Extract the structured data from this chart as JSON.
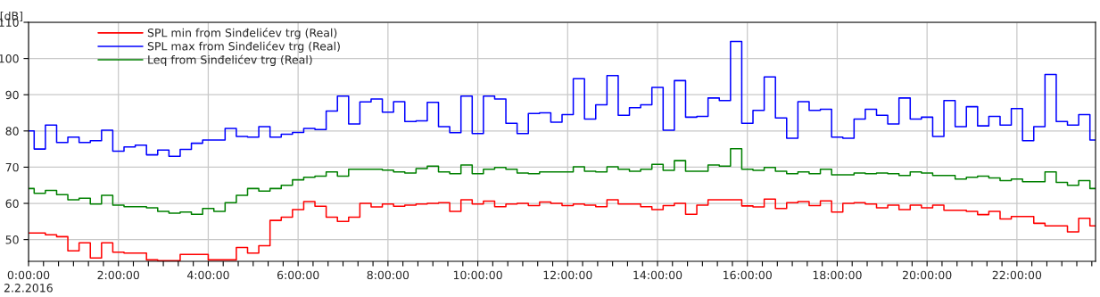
{
  "chart_data": {
    "type": "step",
    "ylabel": "[dB]",
    "annotations": [
      "2.2.2016"
    ],
    "x": [
      0,
      0.25,
      0.5,
      0.75,
      1,
      1.25,
      1.5,
      1.75,
      2,
      2.25,
      2.5,
      2.75,
      3,
      3.25,
      3.5,
      3.75,
      4,
      4.25,
      4.5,
      4.75,
      5,
      5.25,
      5.5,
      5.75,
      6,
      6.25,
      6.5,
      6.75,
      7,
      7.25,
      7.5,
      7.75,
      8,
      8.25,
      8.5,
      8.75,
      9,
      9.25,
      9.5,
      9.75,
      10,
      10.25,
      10.5,
      10.75,
      11,
      11.25,
      11.5,
      11.75,
      12,
      12.25,
      12.5,
      12.75,
      13,
      13.25,
      13.5,
      13.75,
      14,
      14.25,
      14.5,
      14.75,
      15,
      15.25,
      15.5,
      15.75,
      16,
      16.25,
      16.5,
      16.75,
      17,
      17.25,
      17.5,
      17.75,
      18,
      18.25,
      18.5,
      18.75,
      19,
      19.25,
      19.5,
      19.75,
      20,
      20.25,
      20.5,
      20.75,
      21,
      21.25,
      21.5,
      21.75,
      22,
      22.25,
      22.5,
      22.75,
      23,
      23.25,
      23.5,
      23.75
    ],
    "series": [
      {
        "name": "SPL min from Sinđelićev trg (Real)",
        "color": "#ff0000",
        "values": [
          51.8,
          51.8,
          51.3,
          50.8,
          46.9,
          49.1,
          44.9,
          49.1,
          46.5,
          46.3,
          46.3,
          44.4,
          44.2,
          44.2,
          45.9,
          null,
          null,
          null,
          44.4,
          47.8,
          46.3,
          48.3,
          55.3,
          56.2,
          58.3,
          60.5,
          59.2,
          56.2,
          55.0,
          56.2,
          60.0,
          59.0,
          59.8,
          59.2,
          59.5,
          59.8,
          60.0,
          60.2,
          57.8,
          61.0,
          59.8,
          60.6,
          59.1,
          59.8,
          60.0,
          59.4,
          60.4,
          60.0,
          59.4,
          59.8,
          59.5,
          59.1,
          61.0,
          59.8,
          59.8,
          59.1,
          58.3,
          59.4,
          60.0,
          57.0,
          59.5,
          61.0,
          61.0,
          61.0,
          59.3,
          59.0,
          61.2,
          58.6,
          60.2,
          60.5,
          59.4,
          60.7,
          57.6,
          60.0,
          60.2,
          59.8,
          58.8,
          59.5,
          58.3,
          59.5,
          58.8,
          59.5,
          58.1,
          58.1,
          57.8,
          56.9,
          57.8,
          55.7,
          56.4,
          56.4,
          54.5,
          53.8,
          53.8,
          52.1,
          55.9,
          53.8
        ]
      },
      {
        "name": "SPL max from Sinđelićev trg (Real)",
        "color": "#0000ff",
        "values": [
          80.0,
          75.0,
          81.6,
          76.8,
          78.3,
          76.8,
          77.3,
          80.2,
          74.4,
          75.6,
          76.1,
          73.4,
          74.7,
          73.0,
          74.9,
          76.6,
          77.5,
          77.5,
          80.7,
          78.5,
          78.3,
          81.2,
          78.3,
          79.1,
          79.6,
          80.7,
          80.4,
          85.5,
          89.6,
          81.9,
          88.0,
          88.8,
          85.2,
          88.1,
          82.6,
          82.8,
          87.9,
          81.2,
          79.5,
          89.6,
          79.3,
          89.6,
          88.8,
          82.1,
          79.3,
          84.8,
          85.0,
          82.4,
          84.5,
          94.4,
          83.3,
          87.2,
          95.3,
          84.3,
          86.4,
          87.2,
          92.0,
          80.2,
          93.9,
          83.8,
          84.0,
          89.1,
          88.4,
          104.7,
          82.1,
          85.7,
          94.9,
          83.6,
          78.0,
          88.1,
          85.7,
          86.0,
          78.3,
          78.0,
          83.3,
          86.0,
          84.3,
          81.9,
          89.1,
          83.3,
          83.8,
          78.5,
          88.4,
          81.2,
          86.7,
          81.4,
          84.0,
          81.6,
          86.2,
          77.3,
          81.2,
          95.6,
          82.6,
          81.6,
          84.5,
          77.5
        ]
      },
      {
        "name": "Leq from Sinđelićev trg (Real)",
        "color": "#008000",
        "values": [
          64.1,
          62.8,
          63.6,
          62.4,
          61.0,
          61.4,
          59.8,
          62.2,
          59.5,
          59.1,
          59.1,
          58.8,
          57.8,
          57.3,
          57.6,
          57.0,
          58.6,
          57.8,
          60.2,
          62.2,
          64.1,
          63.4,
          64.1,
          65.0,
          66.5,
          67.2,
          67.5,
          68.7,
          67.5,
          69.4,
          69.4,
          69.4,
          69.2,
          68.7,
          68.4,
          69.6,
          70.3,
          68.7,
          68.2,
          70.6,
          68.2,
          69.4,
          69.9,
          69.4,
          68.4,
          68.2,
          68.7,
          68.7,
          68.7,
          70.1,
          68.9,
          68.7,
          70.1,
          69.4,
          68.9,
          69.4,
          70.8,
          69.1,
          71.8,
          68.9,
          68.9,
          70.6,
          70.3,
          75.1,
          69.4,
          69.1,
          69.9,
          68.9,
          68.2,
          68.7,
          68.2,
          69.4,
          67.9,
          67.9,
          68.4,
          68.2,
          68.4,
          68.2,
          67.7,
          68.7,
          68.4,
          67.7,
          67.7,
          66.7,
          67.2,
          67.5,
          67.0,
          66.3,
          66.7,
          66.0,
          66.0,
          68.7,
          65.8,
          65.0,
          66.3,
          64.1
        ]
      }
    ],
    "xlim": [
      0,
      23.75
    ],
    "xticks": [
      {
        "value": 0,
        "label": "0:00:00"
      },
      {
        "value": 0.333,
        "label": null
      },
      {
        "value": 0.667,
        "label": null
      },
      {
        "value": 1,
        "label": null
      },
      {
        "value": 1.333,
        "label": null
      },
      {
        "value": 1.667,
        "label": null
      },
      {
        "value": 2,
        "label": "2:00:00"
      },
      {
        "value": 2.333,
        "label": null
      },
      {
        "value": 2.667,
        "label": null
      },
      {
        "value": 3,
        "label": null
      },
      {
        "value": 3.333,
        "label": null
      },
      {
        "value": 3.667,
        "label": null
      },
      {
        "value": 4,
        "label": "4:00:00"
      },
      {
        "value": 4.333,
        "label": null
      },
      {
        "value": 4.667,
        "label": null
      },
      {
        "value": 5,
        "label": null
      },
      {
        "value": 5.333,
        "label": null
      },
      {
        "value": 5.667,
        "label": null
      },
      {
        "value": 6,
        "label": "6:00:00"
      },
      {
        "value": 6.333,
        "label": null
      },
      {
        "value": 6.667,
        "label": null
      },
      {
        "value": 7,
        "label": null
      },
      {
        "value": 7.333,
        "label": null
      },
      {
        "value": 7.667,
        "label": null
      },
      {
        "value": 8,
        "label": "8:00:00"
      },
      {
        "value": 8.333,
        "label": null
      },
      {
        "value": 8.667,
        "label": null
      },
      {
        "value": 9,
        "label": null
      },
      {
        "value": 9.333,
        "label": null
      },
      {
        "value": 9.667,
        "label": null
      },
      {
        "value": 10,
        "label": "10:00:00"
      },
      {
        "value": 10.333,
        "label": null
      },
      {
        "value": 10.667,
        "label": null
      },
      {
        "value": 11,
        "label": null
      },
      {
        "value": 11.333,
        "label": null
      },
      {
        "value": 11.667,
        "label": null
      },
      {
        "value": 12,
        "label": "12:00:00"
      },
      {
        "value": 12.333,
        "label": null
      },
      {
        "value": 12.667,
        "label": null
      },
      {
        "value": 13,
        "label": null
      },
      {
        "value": 13.333,
        "label": null
      },
      {
        "value": 13.667,
        "label": null
      },
      {
        "value": 14,
        "label": "14:00:00"
      },
      {
        "value": 14.333,
        "label": null
      },
      {
        "value": 14.667,
        "label": null
      },
      {
        "value": 15,
        "label": null
      },
      {
        "value": 15.333,
        "label": null
      },
      {
        "value": 15.667,
        "label": null
      },
      {
        "value": 16,
        "label": "16:00:00"
      },
      {
        "value": 16.333,
        "label": null
      },
      {
        "value": 16.667,
        "label": null
      },
      {
        "value": 17,
        "label": null
      },
      {
        "value": 17.333,
        "label": null
      },
      {
        "value": 17.667,
        "label": null
      },
      {
        "value": 18,
        "label": "18:00:00"
      },
      {
        "value": 18.333,
        "label": null
      },
      {
        "value": 18.667,
        "label": null
      },
      {
        "value": 19,
        "label": null
      },
      {
        "value": 19.333,
        "label": null
      },
      {
        "value": 19.667,
        "label": null
      },
      {
        "value": 20,
        "label": "20:00:00"
      },
      {
        "value": 20.333,
        "label": null
      },
      {
        "value": 20.667,
        "label": null
      },
      {
        "value": 21,
        "label": null
      },
      {
        "value": 21.333,
        "label": null
      },
      {
        "value": 21.667,
        "label": null
      },
      {
        "value": 22,
        "label": "22:00:00"
      },
      {
        "value": 22.333,
        "label": null
      },
      {
        "value": 22.667,
        "label": null
      },
      {
        "value": 23,
        "label": null
      },
      {
        "value": 23.333,
        "label": null
      },
      {
        "value": 23.667,
        "label": null
      }
    ],
    "ylim": [
      44,
      110
    ],
    "yticks": [
      50,
      60,
      70,
      80,
      90,
      100,
      110
    ],
    "grid": true,
    "legend": "top left"
  }
}
